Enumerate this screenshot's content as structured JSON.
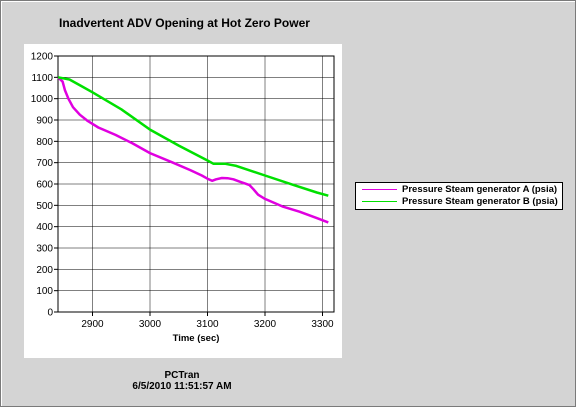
{
  "window": {
    "footer_app": "PCTran",
    "footer_timestamp": "6/5/2010 11:51:57 AM"
  },
  "chart_data": {
    "type": "line",
    "title": "Inadvertent ADV Opening at Hot Zero Power",
    "xlabel": "Time (sec)",
    "ylabel": "",
    "xlim": [
      2840,
      3320
    ],
    "ylim": [
      0,
      1200
    ],
    "xticks": [
      2900,
      3000,
      3100,
      3200,
      3300
    ],
    "yticks": [
      0,
      100,
      200,
      300,
      400,
      500,
      600,
      700,
      800,
      900,
      1000,
      1100,
      1200
    ],
    "grid": true,
    "legend_position": "right",
    "series": [
      {
        "name": "Pressure Steam generator A (psia)",
        "color": "#e000e0",
        "points": [
          [
            2840,
            1100
          ],
          [
            2848,
            1080
          ],
          [
            2852,
            1040
          ],
          [
            2858,
            1000
          ],
          [
            2866,
            960
          ],
          [
            2878,
            925
          ],
          [
            2892,
            895
          ],
          [
            2910,
            865
          ],
          [
            2940,
            830
          ],
          [
            2970,
            790
          ],
          [
            3000,
            745
          ],
          [
            3040,
            700
          ],
          [
            3070,
            665
          ],
          [
            3090,
            640
          ],
          [
            3100,
            625
          ],
          [
            3108,
            615
          ],
          [
            3115,
            622
          ],
          [
            3125,
            628
          ],
          [
            3135,
            627
          ],
          [
            3145,
            622
          ],
          [
            3155,
            612
          ],
          [
            3165,
            603
          ],
          [
            3173,
            595
          ],
          [
            3180,
            575
          ],
          [
            3188,
            550
          ],
          [
            3200,
            530
          ],
          [
            3230,
            495
          ],
          [
            3260,
            470
          ],
          [
            3290,
            440
          ],
          [
            3310,
            420
          ]
        ]
      },
      {
        "name": "Pressure Steam generator B (psia)",
        "color": "#00e000",
        "points": [
          [
            2840,
            1100
          ],
          [
            2860,
            1090
          ],
          [
            2880,
            1060
          ],
          [
            2900,
            1030
          ],
          [
            2950,
            950
          ],
          [
            3000,
            855
          ],
          [
            3050,
            780
          ],
          [
            3100,
            710
          ],
          [
            3110,
            695
          ],
          [
            3130,
            695
          ],
          [
            3150,
            685
          ],
          [
            3200,
            640
          ],
          [
            3250,
            595
          ],
          [
            3290,
            560
          ],
          [
            3310,
            545
          ]
        ]
      }
    ]
  }
}
